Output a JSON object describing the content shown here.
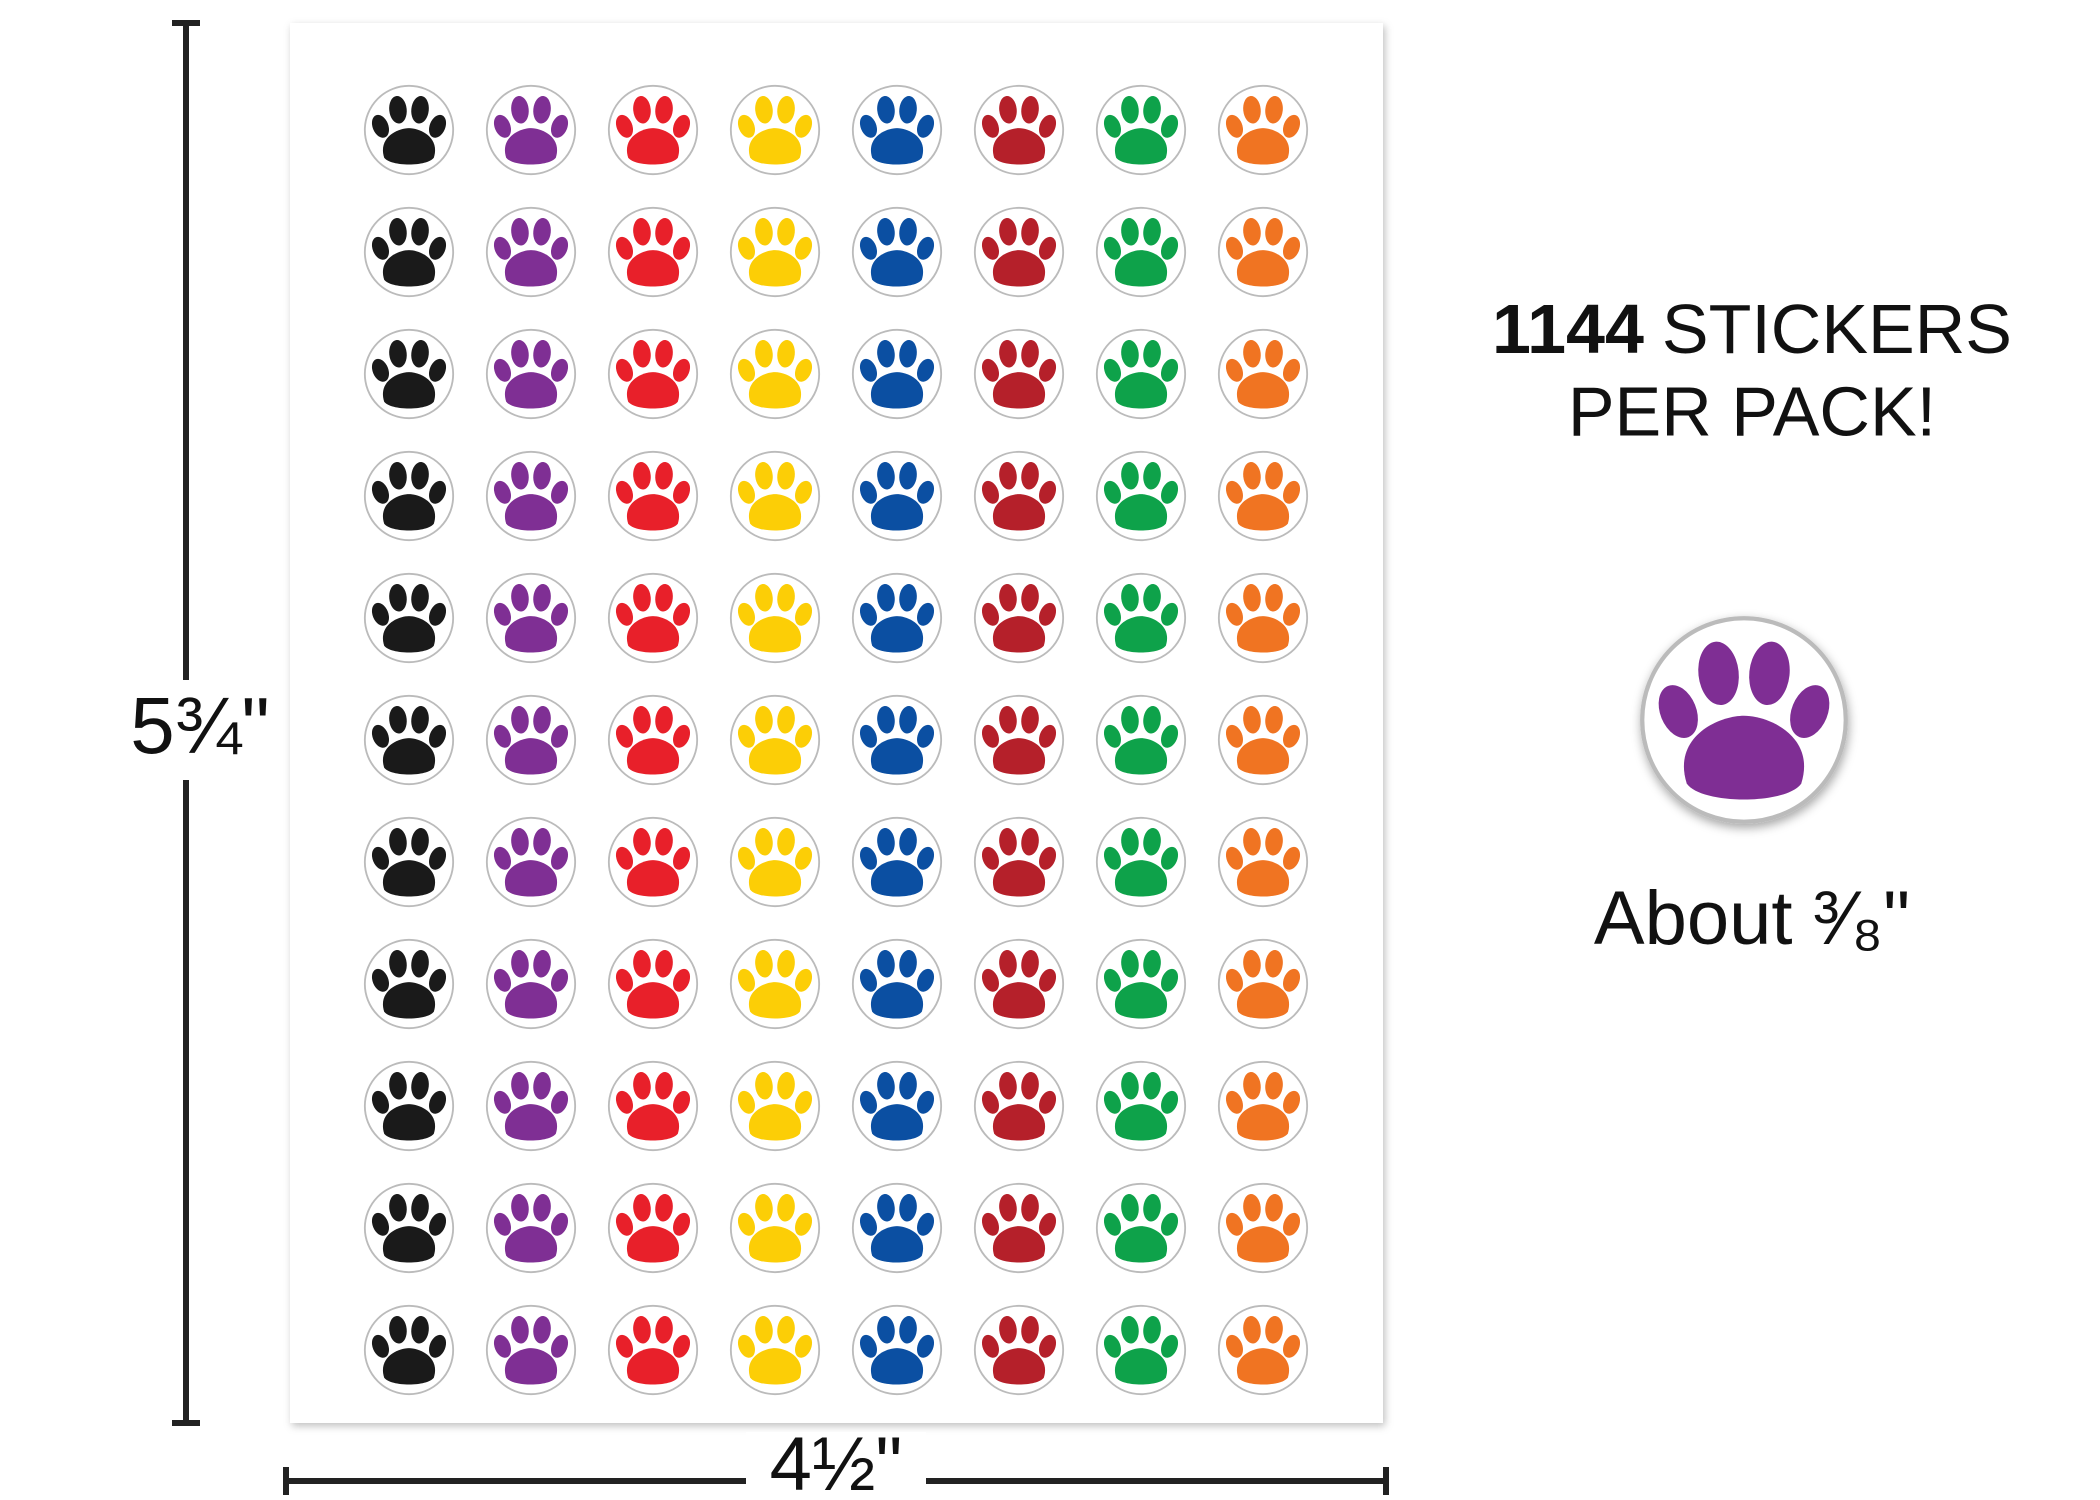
{
  "dimensions": {
    "height": "5¾\"",
    "width": "4½\""
  },
  "headline": {
    "count": "1144",
    "line1": "STICKERS",
    "line2": "PER PACK!"
  },
  "sticker_size": "About ³⁄₈\"",
  "sticker_colors": [
    "#1a1a1a",
    "#7f2f94",
    "#e8202a",
    "#fcce06",
    "#0b4fa2",
    "#b5202a",
    "#0ea24a",
    "#f07422"
  ]
}
